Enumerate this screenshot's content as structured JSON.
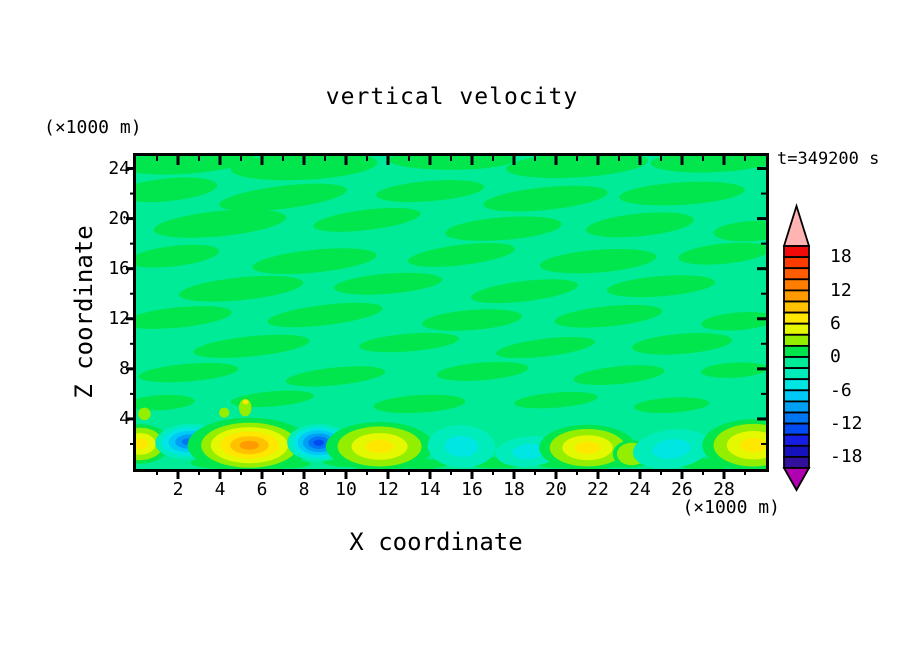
{
  "title": "vertical velocity",
  "timestamp": "t=349200 s",
  "axes": {
    "x": {
      "label": "X coordinate",
      "unit": "(×1000 m)",
      "min": 0,
      "max": 30,
      "major_step": 2,
      "minor_step": 1,
      "ticks": [
        2,
        4,
        6,
        8,
        10,
        12,
        14,
        16,
        18,
        20,
        22,
        24,
        26,
        28
      ]
    },
    "y": {
      "label": "Z coordinate",
      "unit": "(×1000 m)",
      "min": 0,
      "max": 25,
      "major_step": 4,
      "minor_step": 2,
      "ticks": [
        24,
        20,
        16,
        12,
        8,
        4
      ]
    }
  },
  "colorbar": {
    "labels": [
      18,
      12,
      6,
      0,
      -6,
      -12,
      -18
    ],
    "over_color": "#ffb3b3",
    "under_color": "#b100b1",
    "levels": [
      {
        "from": 18,
        "to": 20,
        "color": "#f00a0a"
      },
      {
        "from": 16,
        "to": 18,
        "color": "#fb3b00"
      },
      {
        "from": 14,
        "to": 16,
        "color": "#ff5c00"
      },
      {
        "from": 12,
        "to": 14,
        "color": "#ff7e00"
      },
      {
        "from": 10,
        "to": 12,
        "color": "#ff9b00"
      },
      {
        "from": 8,
        "to": 10,
        "color": "#ffc100"
      },
      {
        "from": 6,
        "to": 8,
        "color": "#ffe700"
      },
      {
        "from": 4,
        "to": 6,
        "color": "#e4f800"
      },
      {
        "from": 2,
        "to": 4,
        "color": "#93ee00"
      },
      {
        "from": 0,
        "to": 2,
        "color": "#00e64c"
      },
      {
        "from": -2,
        "to": 0,
        "color": "#00eb97"
      },
      {
        "from": -4,
        "to": -2,
        "color": "#00edbb"
      },
      {
        "from": -6,
        "to": -4,
        "color": "#00e6e2"
      },
      {
        "from": -8,
        "to": -6,
        "color": "#00c9f6"
      },
      {
        "from": -10,
        "to": -8,
        "color": "#009ff6"
      },
      {
        "from": -12,
        "to": -10,
        "color": "#0075f3"
      },
      {
        "from": -14,
        "to": -12,
        "color": "#004bf1"
      },
      {
        "from": -16,
        "to": -14,
        "color": "#161ee3"
      },
      {
        "from": -18,
        "to": -16,
        "color": "#1511bd"
      },
      {
        "from": -20,
        "to": -18,
        "color": "#32109b"
      }
    ]
  },
  "chart_data": {
    "type": "heatmap",
    "subtype": "filled-contour",
    "title": "vertical velocity",
    "xlabel": "X coordinate (×1000 m)",
    "ylabel": "Z coordinate (×1000 m)",
    "time_label": "t=349200 s",
    "xlim": [
      0,
      30
    ],
    "ylim": [
      0,
      25
    ],
    "contour_interval": 2,
    "level_range": [
      -20,
      20
    ],
    "background_value_range": [
      -2,
      2
    ],
    "background_note": "mottled wavy bands alternating between the 0..2 green and -2..0 spring-green fill levels over the whole domain",
    "features": [
      {
        "x": 0.2,
        "z": 2.0,
        "w": 7,
        "rx": 1.1,
        "rz": 1.3,
        "rot": 0
      },
      {
        "x": 2.5,
        "z": 2.2,
        "w": -11,
        "rx": 1.6,
        "rz": 1.4,
        "rot": -18
      },
      {
        "x": 5.4,
        "z": 1.9,
        "w": 11,
        "rx": 2.3,
        "rz": 1.8,
        "rot": 0
      },
      {
        "x": 8.7,
        "z": 2.1,
        "w": -13,
        "rx": 1.5,
        "rz": 1.5,
        "rot": 12
      },
      {
        "x": 11.6,
        "z": 1.8,
        "w": 7,
        "rx": 2.0,
        "rz": 1.6,
        "rot": 0
      },
      {
        "x": 15.5,
        "z": 1.8,
        "w": -5,
        "rx": 1.6,
        "rz": 1.7,
        "rot": -18
      },
      {
        "x": 18.7,
        "z": 1.4,
        "w": -4,
        "rx": 1.6,
        "rz": 1.2,
        "rot": -15
      },
      {
        "x": 21.5,
        "z": 1.7,
        "w": 7,
        "rx": 1.8,
        "rz": 1.5,
        "rot": 0
      },
      {
        "x": 23.6,
        "z": 1.2,
        "w": 3,
        "rx": 0.7,
        "rz": 0.9,
        "rot": 0
      },
      {
        "x": 25.5,
        "z": 1.6,
        "w": -5,
        "rx": 1.9,
        "rz": 1.5,
        "rot": -25
      },
      {
        "x": 29.4,
        "z": 1.9,
        "w": 7,
        "rx": 1.9,
        "rz": 1.7,
        "rot": 0
      }
    ]
  }
}
